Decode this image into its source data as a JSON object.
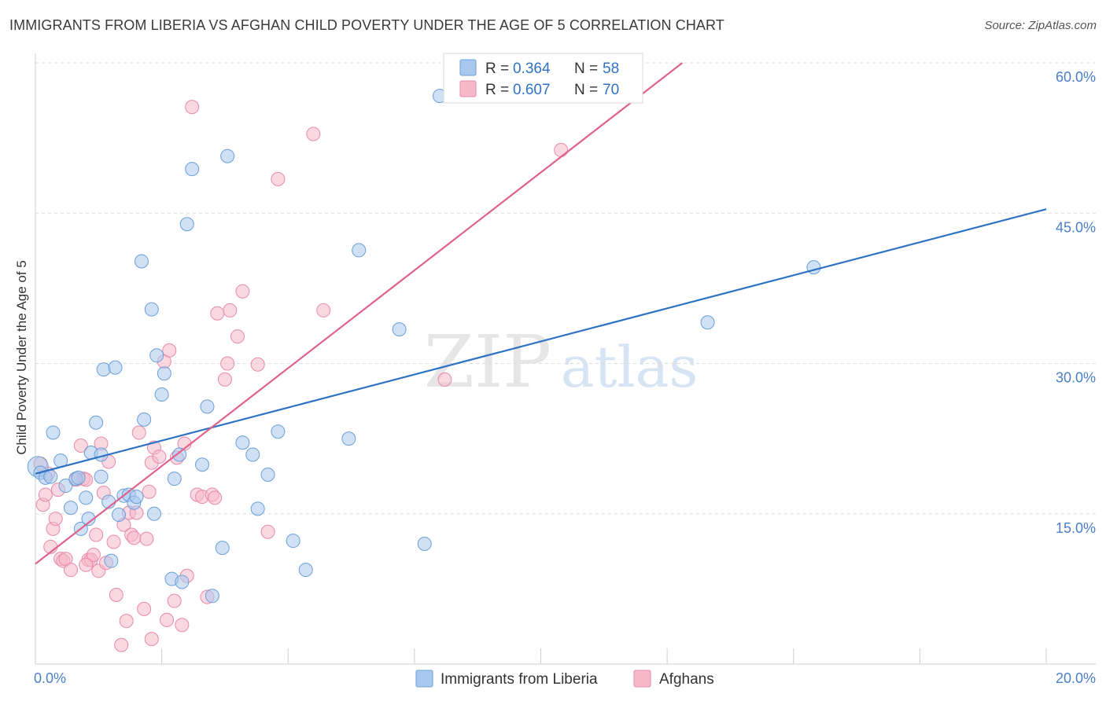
{
  "title": "IMMIGRANTS FROM LIBERIA VS AFGHAN CHILD POVERTY UNDER THE AGE OF 5 CORRELATION CHART",
  "source": "Source: ZipAtlas.com",
  "watermark": {
    "zip": "ZIP",
    "atlas": "atlas"
  },
  "colors": {
    "liberia_fill": "#a9c8ee",
    "liberia_stroke": "#6a9fd8",
    "liberia_line": "#2f72c4",
    "afghan_fill": "#f6b8cb",
    "afghan_stroke": "#e88aa8",
    "afghan_line": "#e0628c",
    "tick_text": "#4a7fc6",
    "grid": "#dcdcdc"
  },
  "stats_legend": [
    {
      "r_label": "R =",
      "r_value": "0.364",
      "n_label": "N =",
      "n_value": "58"
    },
    {
      "r_label": "R =",
      "r_value": "0.607",
      "n_label": "N =",
      "n_value": "70"
    }
  ],
  "chart_data": {
    "type": "scatter",
    "title": "IMMIGRANTS FROM LIBERIA VS AFGHAN CHILD POVERTY UNDER THE AGE OF 5 CORRELATION CHART",
    "xlabel": "",
    "ylabel": "Child Poverty Under the Age of 5",
    "xlim": [
      0,
      20
    ],
    "ylim": [
      0,
      60
    ],
    "x_ticks": [
      0,
      20
    ],
    "x_tick_labels": [
      "0.0%",
      "20.0%"
    ],
    "y_ticks": [
      15,
      30,
      45,
      60
    ],
    "y_tick_labels": [
      "15.0%",
      "30.0%",
      "45.0%",
      "60.0%"
    ],
    "grid": true,
    "legend_position": "bottom-center",
    "series": [
      {
        "name": "Immigrants from Liberia",
        "color": "#a9c8ee",
        "r": 0.364,
        "n": 58,
        "trendline": [
          [
            0,
            19.0
          ],
          [
            20,
            45.4
          ]
        ],
        "points": [
          [
            0.05,
            19.7
          ],
          [
            0.1,
            19.1
          ],
          [
            0.2,
            18.6
          ],
          [
            0.3,
            18.7
          ],
          [
            0.35,
            23.1
          ],
          [
            0.5,
            20.3
          ],
          [
            0.6,
            17.8
          ],
          [
            0.7,
            15.6
          ],
          [
            0.8,
            18.5
          ],
          [
            0.85,
            18.6
          ],
          [
            0.9,
            13.5
          ],
          [
            1.0,
            16.6
          ],
          [
            1.05,
            14.5
          ],
          [
            1.1,
            21.1
          ],
          [
            1.2,
            24.1
          ],
          [
            1.3,
            20.9
          ],
          [
            1.35,
            29.4
          ],
          [
            1.45,
            16.2
          ],
          [
            1.5,
            10.3
          ],
          [
            1.58,
            29.6
          ],
          [
            1.65,
            14.9
          ],
          [
            1.75,
            16.8
          ],
          [
            1.85,
            16.9
          ],
          [
            1.95,
            16.1
          ],
          [
            2.0,
            16.7
          ],
          [
            2.1,
            40.2
          ],
          [
            2.15,
            24.4
          ],
          [
            2.3,
            35.4
          ],
          [
            2.35,
            15.0
          ],
          [
            2.4,
            30.8
          ],
          [
            2.5,
            26.9
          ],
          [
            2.55,
            29.0
          ],
          [
            2.7,
            8.5
          ],
          [
            2.75,
            18.5
          ],
          [
            2.85,
            20.9
          ],
          [
            2.9,
            8.2
          ],
          [
            3.0,
            43.9
          ],
          [
            3.1,
            49.4
          ],
          [
            3.3,
            19.9
          ],
          [
            3.4,
            25.7
          ],
          [
            3.5,
            6.8
          ],
          [
            3.7,
            11.6
          ],
          [
            3.8,
            50.7
          ],
          [
            4.1,
            22.1
          ],
          [
            4.3,
            20.9
          ],
          [
            4.4,
            15.5
          ],
          [
            4.6,
            18.9
          ],
          [
            4.8,
            23.2
          ],
          [
            5.1,
            12.3
          ],
          [
            5.35,
            9.4
          ],
          [
            6.2,
            22.5
          ],
          [
            6.4,
            41.3
          ],
          [
            7.2,
            33.4
          ],
          [
            7.7,
            12.0
          ],
          [
            8.0,
            56.7
          ],
          [
            13.3,
            34.1
          ],
          [
            15.4,
            39.6
          ],
          [
            1.3,
            18.7
          ]
        ]
      },
      {
        "name": "Afghans",
        "color": "#f6b8cb",
        "r": 0.607,
        "n": 70,
        "trendline": [
          [
            0,
            10.0
          ],
          [
            12.8,
            60.0
          ]
        ],
        "points": [
          [
            0.1,
            20.0
          ],
          [
            0.15,
            15.9
          ],
          [
            0.2,
            16.9
          ],
          [
            0.3,
            11.7
          ],
          [
            0.35,
            13.5
          ],
          [
            0.4,
            14.5
          ],
          [
            0.45,
            17.4
          ],
          [
            0.5,
            10.5
          ],
          [
            0.55,
            10.3
          ],
          [
            0.6,
            10.5
          ],
          [
            0.7,
            9.4
          ],
          [
            0.8,
            18.4
          ],
          [
            0.9,
            21.8
          ],
          [
            0.95,
            18.5
          ],
          [
            1.0,
            18.4
          ],
          [
            1.05,
            10.4
          ],
          [
            1.1,
            10.4
          ],
          [
            1.15,
            10.9
          ],
          [
            1.2,
            12.9
          ],
          [
            1.25,
            9.3
          ],
          [
            1.3,
            22.0
          ],
          [
            1.35,
            17.1
          ],
          [
            1.4,
            10.1
          ],
          [
            1.45,
            20.2
          ],
          [
            1.55,
            12.2
          ],
          [
            1.6,
            6.9
          ],
          [
            1.7,
            1.9
          ],
          [
            1.75,
            13.9
          ],
          [
            1.8,
            4.3
          ],
          [
            1.85,
            15.1
          ],
          [
            1.9,
            12.9
          ],
          [
            1.95,
            12.6
          ],
          [
            2.0,
            15.1
          ],
          [
            2.05,
            23.1
          ],
          [
            2.15,
            5.5
          ],
          [
            2.2,
            12.5
          ],
          [
            2.25,
            17.2
          ],
          [
            2.3,
            20.1
          ],
          [
            2.35,
            21.6
          ],
          [
            2.45,
            20.7
          ],
          [
            2.55,
            30.2
          ],
          [
            2.6,
            4.4
          ],
          [
            2.65,
            31.3
          ],
          [
            2.75,
            6.3
          ],
          [
            2.8,
            20.6
          ],
          [
            2.9,
            3.9
          ],
          [
            2.95,
            22.0
          ],
          [
            3.0,
            8.8
          ],
          [
            3.1,
            55.6
          ],
          [
            3.2,
            16.9
          ],
          [
            3.3,
            16.7
          ],
          [
            3.4,
            6.7
          ],
          [
            3.5,
            16.9
          ],
          [
            3.55,
            16.6
          ],
          [
            3.6,
            35.0
          ],
          [
            3.75,
            28.4
          ],
          [
            3.8,
            30.0
          ],
          [
            3.85,
            35.3
          ],
          [
            4.0,
            32.7
          ],
          [
            4.1,
            37.2
          ],
          [
            4.4,
            29.9
          ],
          [
            4.6,
            13.2
          ],
          [
            4.8,
            48.4
          ],
          [
            5.5,
            52.9
          ],
          [
            5.7,
            35.3
          ],
          [
            8.1,
            28.4
          ],
          [
            10.4,
            51.3
          ],
          [
            2.3,
            2.5
          ],
          [
            1.0,
            9.9
          ],
          [
            0.25,
            19.0
          ]
        ]
      }
    ]
  }
}
